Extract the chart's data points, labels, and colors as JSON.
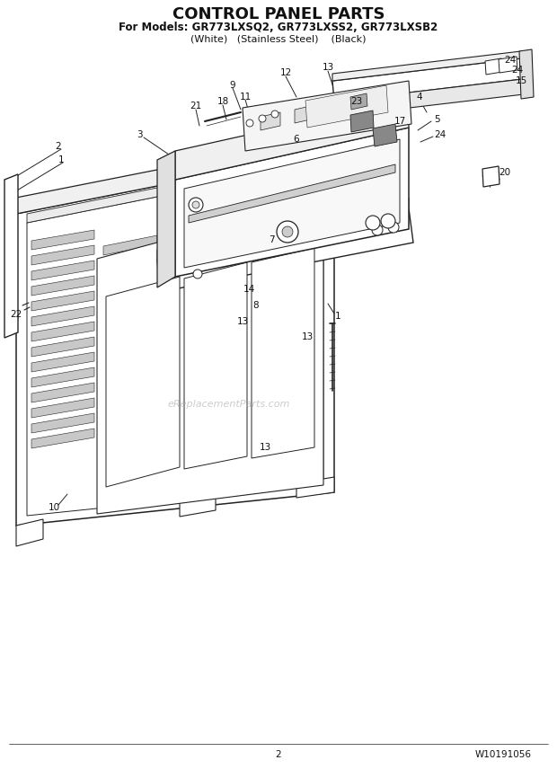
{
  "title": "CONTROL PANEL PARTS",
  "subtitle1": "For Models: GR773LXSQ2, GR773LXSS2, GR773LXSB2",
  "subtitle2": "(White)   (Stainless Steel)    (Black)",
  "page_number": "2",
  "part_number": "W10191056",
  "watermark": "eReplacementParts.com",
  "bg_color": "#ffffff",
  "lc": "#222222",
  "tc": "#111111",
  "title_fs": 13,
  "sub1_fs": 8.5,
  "sub2_fs": 8,
  "lbl_fs": 7.5,
  "foot_fs": 7.5
}
